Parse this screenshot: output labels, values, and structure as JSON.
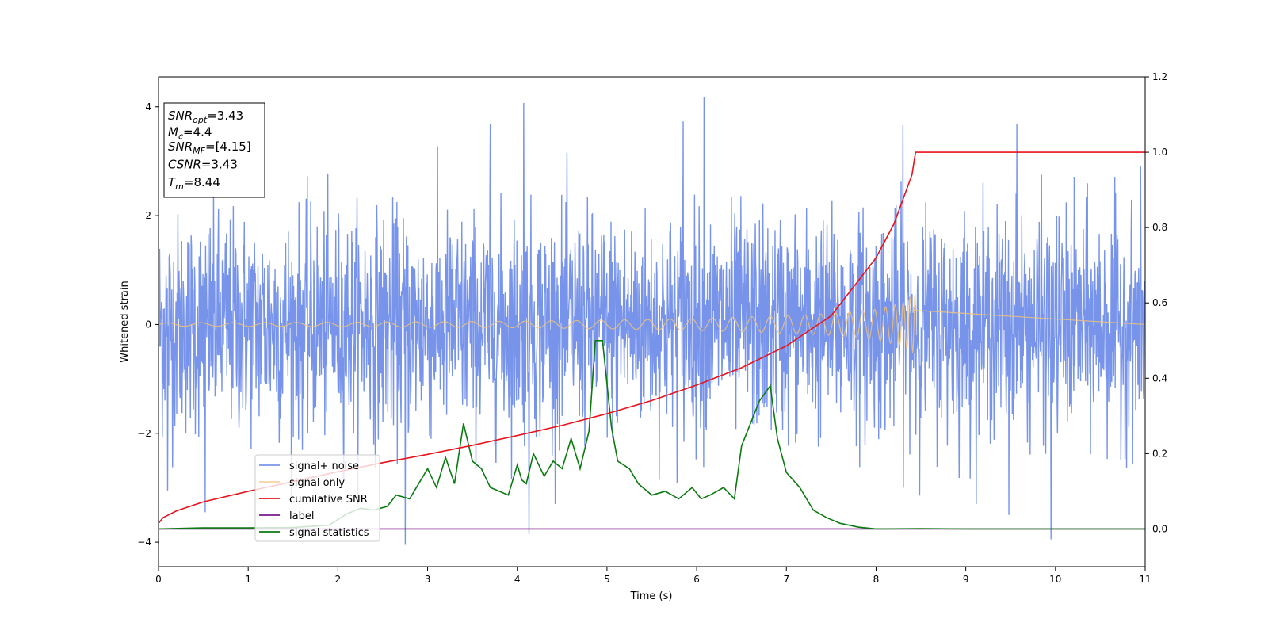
{
  "chart_data": {
    "type": "line",
    "xlabel": "Time (s)",
    "ylabel": "Whitened strain",
    "xlim": [
      0,
      11
    ],
    "ylim": [
      -4.45,
      4.55
    ],
    "y2lim": [
      -0.1,
      1.2
    ],
    "x_ticks": [
      0,
      1,
      2,
      3,
      4,
      5,
      6,
      7,
      8,
      9,
      10,
      11
    ],
    "y_ticks": [
      -4,
      -2,
      0,
      2,
      4
    ],
    "y2_ticks": [
      0.0,
      0.2,
      0.4,
      0.6,
      0.8,
      1.0,
      1.2
    ],
    "grid": false,
    "legend_position": "lower-left",
    "annotation_box": {
      "lines": [
        {
          "name": "SNR",
          "sub": "opt",
          "value": "=3.43"
        },
        {
          "name": "M",
          "sub": "c",
          "value": "=4.4"
        },
        {
          "name": "SNR",
          "sub": "MF",
          "value": "=[4.15]"
        },
        {
          "name": "CSNR",
          "sub": "",
          "value": "=3.43"
        },
        {
          "name": "T",
          "sub": "m",
          "value": "=8.44"
        }
      ]
    },
    "series": [
      {
        "name": "signal+ noise",
        "color": "#6b8be8",
        "axis": "left",
        "kind": "noise",
        "std": 1.0,
        "x_range": [
          0,
          11
        ],
        "spikes": [
          {
            "x": 4.07,
            "y": 4.07
          },
          {
            "x": 6.08,
            "y": 4.18
          },
          {
            "x": 5.85,
            "y": 3.73
          },
          {
            "x": 3.7,
            "y": 3.68
          },
          {
            "x": 9.57,
            "y": 3.68
          },
          {
            "x": 8.3,
            "y": 3.66
          },
          {
            "x": 2.75,
            "y": -4.05
          },
          {
            "x": 4.13,
            "y": -3.85
          },
          {
            "x": 9.95,
            "y": -3.95
          },
          {
            "x": 9.48,
            "y": -3.5
          },
          {
            "x": 0.52,
            "y": -3.45
          },
          {
            "x": 0.1,
            "y": -3.05
          }
        ]
      },
      {
        "name": "signal only",
        "color": "#f0c27a",
        "axis": "left",
        "kind": "chirp",
        "t_merge": 8.44,
        "x_range": [
          0,
          8.44
        ],
        "envelope": [
          [
            0,
            0.03
          ],
          [
            2,
            0.04
          ],
          [
            4,
            0.06
          ],
          [
            5,
            0.08
          ],
          [
            6,
            0.11
          ],
          [
            7,
            0.16
          ],
          [
            7.5,
            0.2
          ],
          [
            8,
            0.28
          ],
          [
            8.3,
            0.4
          ],
          [
            8.44,
            0.55
          ]
        ]
      },
      {
        "name": "cumilative SNR",
        "color": "#e8141c",
        "axis": "right",
        "kind": "curve",
        "x": [
          0,
          0.05,
          0.2,
          0.5,
          1,
          1.5,
          2,
          2.5,
          3,
          3.5,
          4,
          4.5,
          5,
          5.5,
          6,
          6.5,
          7,
          7.5,
          8,
          8.2,
          8.4,
          8.44,
          9,
          10,
          11
        ],
        "values": [
          0.015,
          0.03,
          0.048,
          0.072,
          0.1,
          0.126,
          0.152,
          0.176,
          0.198,
          0.222,
          0.248,
          0.275,
          0.306,
          0.341,
          0.382,
          0.428,
          0.486,
          0.566,
          0.72,
          0.81,
          0.94,
          1.0,
          1.0,
          1.0,
          1.0
        ]
      },
      {
        "name": "label",
        "color": "#7a1a8e",
        "axis": "right",
        "kind": "curve",
        "x": [
          0,
          11
        ],
        "values": [
          0.0,
          0.0
        ]
      },
      {
        "name": "signal statistics",
        "color": "#0b7a10",
        "axis": "right",
        "kind": "curve",
        "x": [
          0,
          0.5,
          1,
          1.5,
          1.9,
          2.1,
          2.25,
          2.4,
          2.55,
          2.65,
          2.8,
          2.9,
          3.0,
          3.1,
          3.2,
          3.3,
          3.4,
          3.5,
          3.6,
          3.7,
          3.8,
          3.9,
          4.0,
          4.05,
          4.1,
          4.18,
          4.3,
          4.4,
          4.5,
          4.6,
          4.7,
          4.8,
          4.87,
          4.95,
          5.05,
          5.12,
          5.25,
          5.35,
          5.5,
          5.65,
          5.8,
          5.95,
          6.05,
          6.15,
          6.3,
          6.42,
          6.5,
          6.7,
          6.82,
          6.9,
          7.0,
          7.15,
          7.3,
          7.45,
          7.6,
          7.8,
          8.0,
          8.5,
          9,
          10,
          11
        ],
        "values": [
          0.0,
          0.003,
          0.003,
          0.004,
          0.01,
          0.04,
          0.055,
          0.05,
          0.06,
          0.09,
          0.08,
          0.12,
          0.16,
          0.11,
          0.19,
          0.12,
          0.28,
          0.18,
          0.16,
          0.11,
          0.1,
          0.09,
          0.17,
          0.13,
          0.12,
          0.2,
          0.14,
          0.18,
          0.16,
          0.24,
          0.16,
          0.26,
          0.5,
          0.5,
          0.27,
          0.18,
          0.16,
          0.12,
          0.09,
          0.1,
          0.08,
          0.11,
          0.08,
          0.09,
          0.11,
          0.08,
          0.22,
          0.34,
          0.38,
          0.24,
          0.15,
          0.11,
          0.05,
          0.03,
          0.015,
          0.005,
          0.0,
          0.001,
          0.0,
          0.0,
          0.0
        ]
      }
    ]
  }
}
